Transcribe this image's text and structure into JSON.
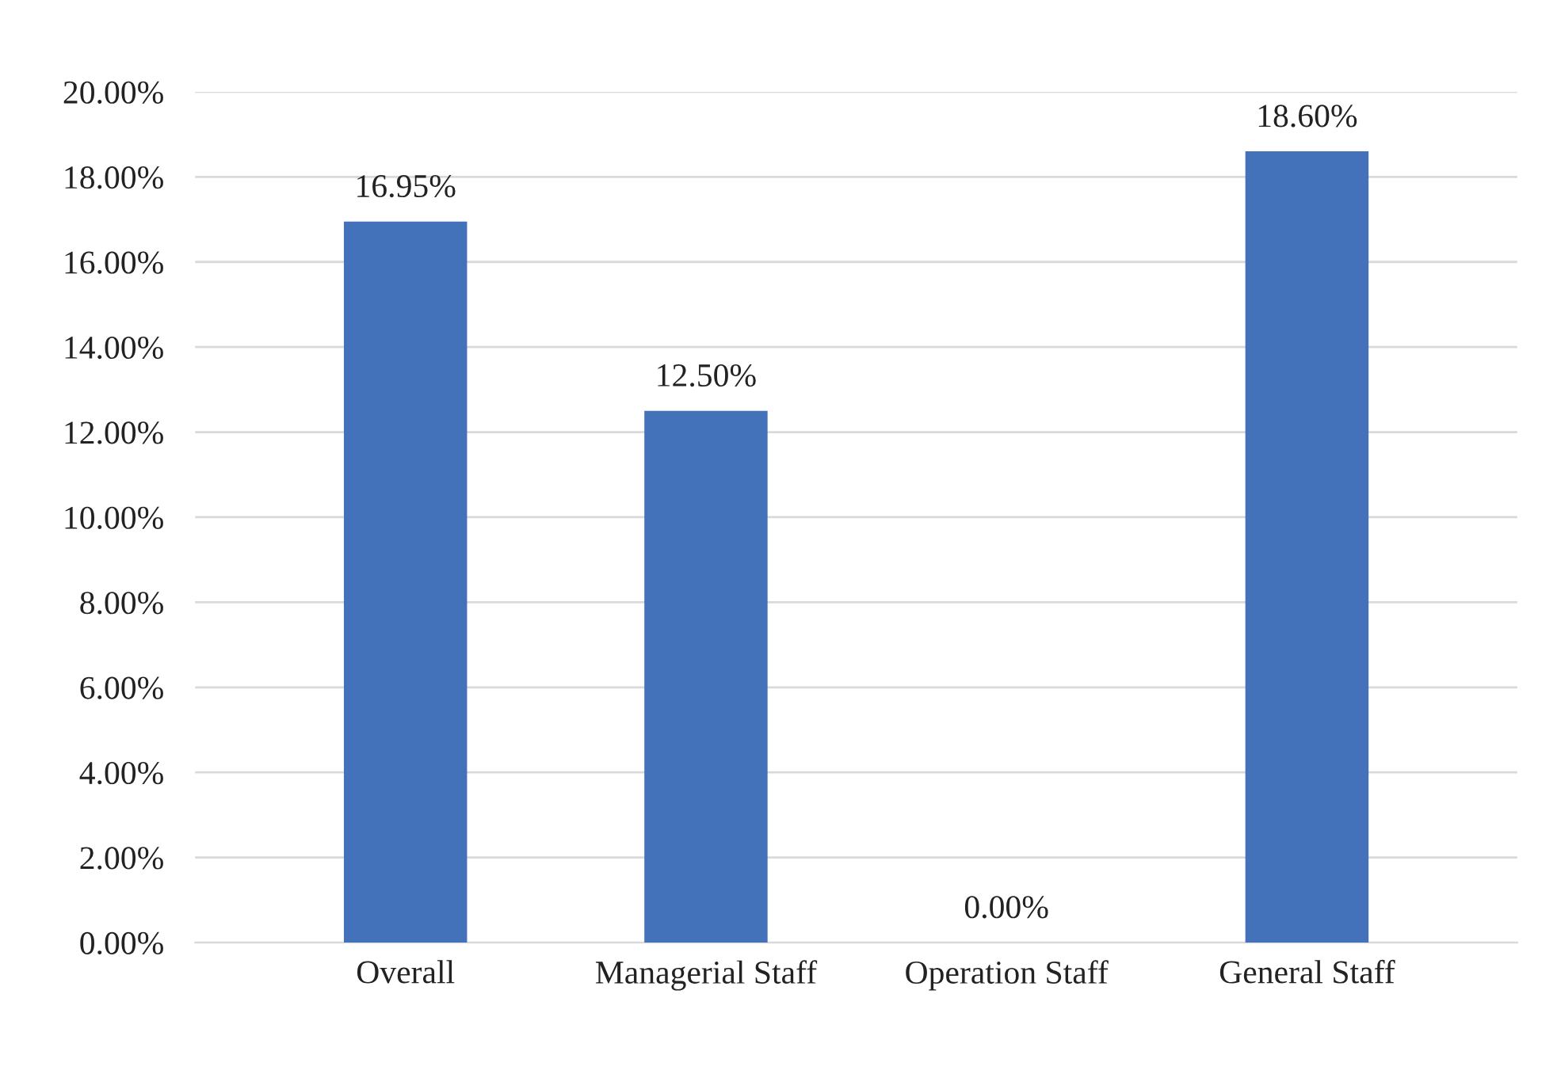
{
  "chart_data": {
    "type": "bar",
    "categories": [
      "Overall",
      "Managerial Staff",
      "Operation Staff",
      "General Staff"
    ],
    "values": [
      16.95,
      12.5,
      0,
      18.6
    ],
    "value_labels": [
      "16.95%",
      "12.50%",
      "0.00%",
      "18.60%"
    ],
    "color": "#4372bb",
    "ylim": [
      0,
      20
    ],
    "yticks": [
      {
        "value": 0,
        "label": "0.00%"
      },
      {
        "value": 2,
        "label": "2.00%"
      },
      {
        "value": 4,
        "label": "4.00%"
      },
      {
        "value": 6,
        "label": "6.00%"
      },
      {
        "value": 8,
        "label": "8.00%"
      },
      {
        "value": 10,
        "label": "10.00%"
      },
      {
        "value": 12,
        "label": "12.00%"
      },
      {
        "value": 14,
        "label": "14.00%"
      },
      {
        "value": 16,
        "label": "16.00%"
      },
      {
        "value": 18,
        "label": "18.00%"
      },
      {
        "value": 20,
        "label": "20.00%"
      }
    ],
    "grid": "y",
    "legend": false
  }
}
